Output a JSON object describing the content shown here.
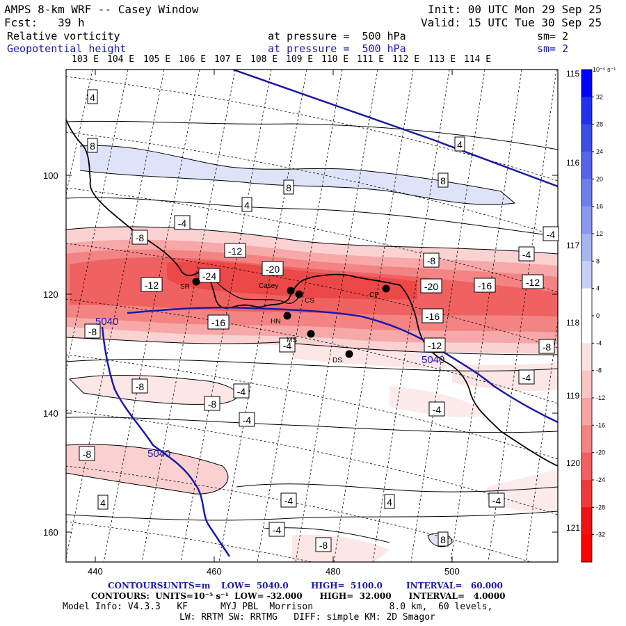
{
  "header": {
    "title": "AMPS 8-km WRF -- Casey Window",
    "init": "Init: 00 UTC Mon 29 Sep 25",
    "fcst": "Fcst:   39 h",
    "valid": "Valid: 15 UTC Tue 30 Sep 25",
    "field1": {
      "name": "Relative vorticity",
      "level": "at pressure =  500 hPa",
      "sm": "sm= 2"
    },
    "field2": {
      "name": "Geopotential height",
      "level": "at pressure =  500 hPa",
      "sm": "sm= 2"
    }
  },
  "map": {
    "lon_labels_top": [
      "103 E",
      "104 E",
      "105 E",
      "106 E",
      "107 E",
      "108 E",
      "109 E",
      "110 E",
      "111 E",
      "112 E",
      "113 E",
      "114 E"
    ],
    "lon_labels_right": [
      "115 E",
      "116 E",
      "117 E",
      "118 E",
      "119 E",
      "120 E",
      "121 E"
    ],
    "y_ticks": [
      "100",
      "120",
      "140",
      "160"
    ],
    "x_ticks": [
      "440",
      "460",
      "480",
      "500"
    ],
    "stations": [
      {
        "code": "SR",
        "name": "SR"
      },
      {
        "code": "Casey",
        "name": "Casey"
      },
      {
        "code": "CS",
        "name": "CS"
      },
      {
        "code": "CP",
        "name": "CP"
      },
      {
        "code": "HN",
        "name": "HN"
      },
      {
        "code": "MS",
        "name": "MS"
      },
      {
        "code": "DS",
        "name": "DS"
      }
    ],
    "height_contour_label": "5040",
    "vorticity_labels": [
      "4",
      "8",
      "-4",
      "-8",
      "-12",
      "-16",
      "-20",
      "-24"
    ]
  },
  "colorbar": {
    "units": "10⁻⁵ s⁻¹",
    "levels": [
      "32",
      "28",
      "24",
      "20",
      "16",
      "12",
      "8",
      "4",
      "0",
      "-4",
      "-8",
      "-12",
      "-16",
      "-20",
      "-24",
      "-28",
      "-32"
    ],
    "colors": [
      "#0000ff",
      "#1f33ee",
      "#3a4ee8",
      "#5566ea",
      "#707fec",
      "#8b98ef",
      "#a8b3f2",
      "#c8cff6",
      "#ffffff",
      "#ffffff",
      "#fde2e2",
      "#fbc4c4",
      "#f8a4a4",
      "#f58282",
      "#f35e5e",
      "#f03a3a",
      "#ee1212",
      "#ff0000"
    ]
  },
  "footer": {
    "line1_contours": "CONTOURS:",
    "line1_units": "UNITS=m",
    "line1_low": "LOW=  5040.0",
    "line1_high": "HIGH=  5100.0",
    "line1_interval": "INTERVAL=   60.000",
    "line2": "CONTOURS:  UNITS=10⁻⁵ s⁻¹  LOW= -32.000      HIGH=  32.000      INTERVAL=   4.0000",
    "line3": "Model Info: V4.3.3   KF      MYJ PBL  Morrison              8.0 km,  60 levels,",
    "line4": "LW: RRTM SW: RRTMG   DIFF: simple KM: 2D Smagor"
  }
}
